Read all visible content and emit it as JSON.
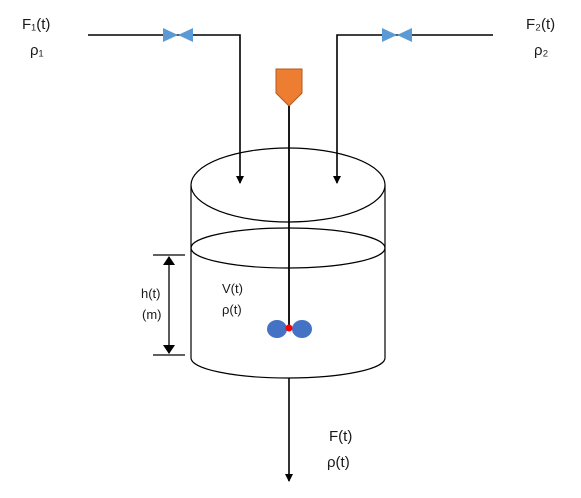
{
  "inlet_1": {
    "flow_label": "F₁(t)",
    "density_label": "ρ₁"
  },
  "inlet_2": {
    "flow_label": "F₂(t)",
    "density_label": "ρ₂"
  },
  "tank": {
    "volume_label": "V(t)",
    "density_label": "ρ(t)"
  },
  "level": {
    "height_label": "h(t)",
    "unit_label": "(m)"
  },
  "outlet": {
    "flow_label": "F(t)",
    "density_label": "ρ(t)"
  },
  "colors": {
    "valve": "#5b9bd5",
    "motor": "#ed7d31",
    "impeller": "#4472c4",
    "impeller_hub": "#ff0000",
    "line": "#000000"
  }
}
